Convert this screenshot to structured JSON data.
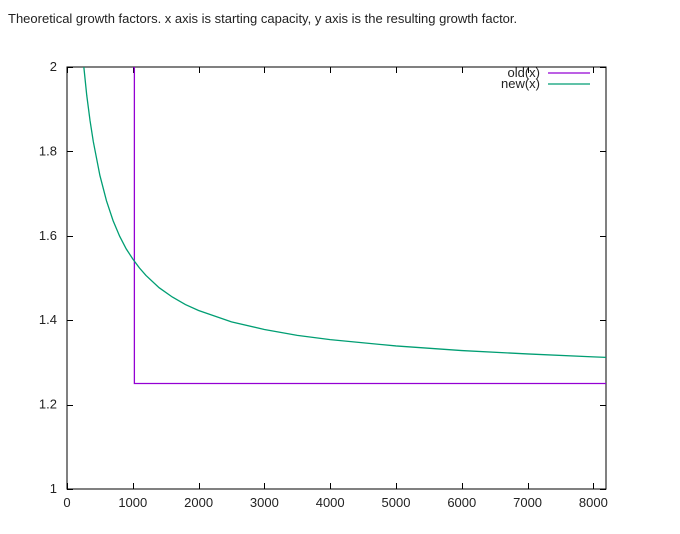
{
  "caption": "Theoretical growth factors. x axis is starting capacity, y axis is the resulting growth factor.",
  "chart_data": {
    "type": "line",
    "title": "",
    "xlabel": "",
    "ylabel": "",
    "xlim": [
      0,
      8192
    ],
    "ylim": [
      1,
      2
    ],
    "x_ticks": [
      0,
      1000,
      2000,
      3000,
      4000,
      5000,
      6000,
      7000,
      8000
    ],
    "y_ticks": [
      1,
      1.2,
      1.4,
      1.6,
      1.8,
      2
    ],
    "grid": false,
    "legend_position": "top-right",
    "series": [
      {
        "name": "old(x)",
        "color": "#9400d3",
        "x": [
          1000,
          1024,
          1024,
          8192
        ],
        "y": [
          2,
          2,
          1.25,
          1.25
        ]
      },
      {
        "name": "new(x)",
        "color": "#009e73",
        "x": [
          256,
          300,
          350,
          400,
          500,
          600,
          700,
          800,
          900,
          1000,
          1100,
          1200,
          1400,
          1600,
          1800,
          2000,
          2500,
          3000,
          3500,
          4000,
          5000,
          6000,
          7000,
          8000,
          8192
        ],
        "y": [
          2.0,
          1.933,
          1.873,
          1.823,
          1.743,
          1.683,
          1.636,
          1.599,
          1.569,
          1.545,
          1.524,
          1.506,
          1.477,
          1.455,
          1.437,
          1.423,
          1.396,
          1.378,
          1.364,
          1.354,
          1.339,
          1.328,
          1.32,
          1.313,
          1.312
        ]
      }
    ]
  }
}
